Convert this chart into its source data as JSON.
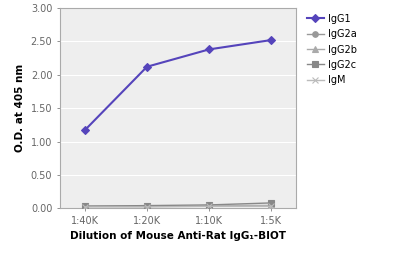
{
  "x_labels": [
    "1:40K",
    "1:20K",
    "1:10K",
    "1:5K"
  ],
  "x_values": [
    0,
    1,
    2,
    3
  ],
  "series": {
    "IgG1": [
      1.17,
      2.12,
      2.38,
      2.52
    ],
    "IgG2a": [
      0.03,
      0.03,
      0.04,
      0.04
    ],
    "IgG2b": [
      0.03,
      0.03,
      0.04,
      0.04
    ],
    "IgG2c": [
      0.03,
      0.04,
      0.05,
      0.08
    ],
    "IgM": [
      0.02,
      0.02,
      0.03,
      0.03
    ]
  },
  "colors": {
    "IgG1": "#5544bb",
    "IgG2a": "#999999",
    "IgG2b": "#aaaaaa",
    "IgG2c": "#888888",
    "IgM": "#bbbbbb"
  },
  "markers": {
    "IgG1": "D",
    "IgG2a": "o",
    "IgG2b": "^",
    "IgG2c": "s",
    "IgM": "x"
  },
  "marker_sizes": {
    "IgG1": 4,
    "IgG2a": 4,
    "IgG2b": 4,
    "IgG2c": 4,
    "IgM": 4
  },
  "line_widths": {
    "IgG1": 1.5,
    "IgG2a": 1.0,
    "IgG2b": 1.0,
    "IgG2c": 1.0,
    "IgM": 1.0
  },
  "ylabel": "O.D. at 405 nm",
  "xlabel": "Dilution of Mouse Anti-Rat IgG₁-BIOT",
  "ylim": [
    0.0,
    3.0
  ],
  "yticks": [
    0.0,
    0.5,
    1.0,
    1.5,
    2.0,
    2.5,
    3.0
  ],
  "ytick_labels": [
    "0.00",
    "0.50",
    "1.00",
    "1.50",
    "2.00",
    "2.50",
    "3.00"
  ],
  "background_color": "#ffffff",
  "plot_bg_color": "#eeeeee",
  "grid_color": "#ffffff",
  "spine_color": "#aaaaaa"
}
